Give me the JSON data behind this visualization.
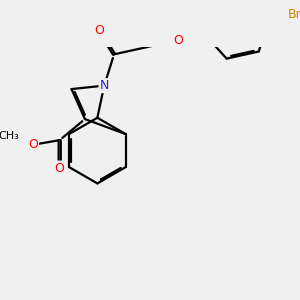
{
  "background_color": "#f0f0f0",
  "atom_colors": {
    "O": "#ff0000",
    "N": "#2222cc",
    "Br": "#cc8800",
    "C": "#000000"
  },
  "bond_lw": 1.6,
  "doff": 0.07,
  "font_size": 8.5,
  "figsize": [
    3.0,
    3.0
  ],
  "dpi": 100
}
